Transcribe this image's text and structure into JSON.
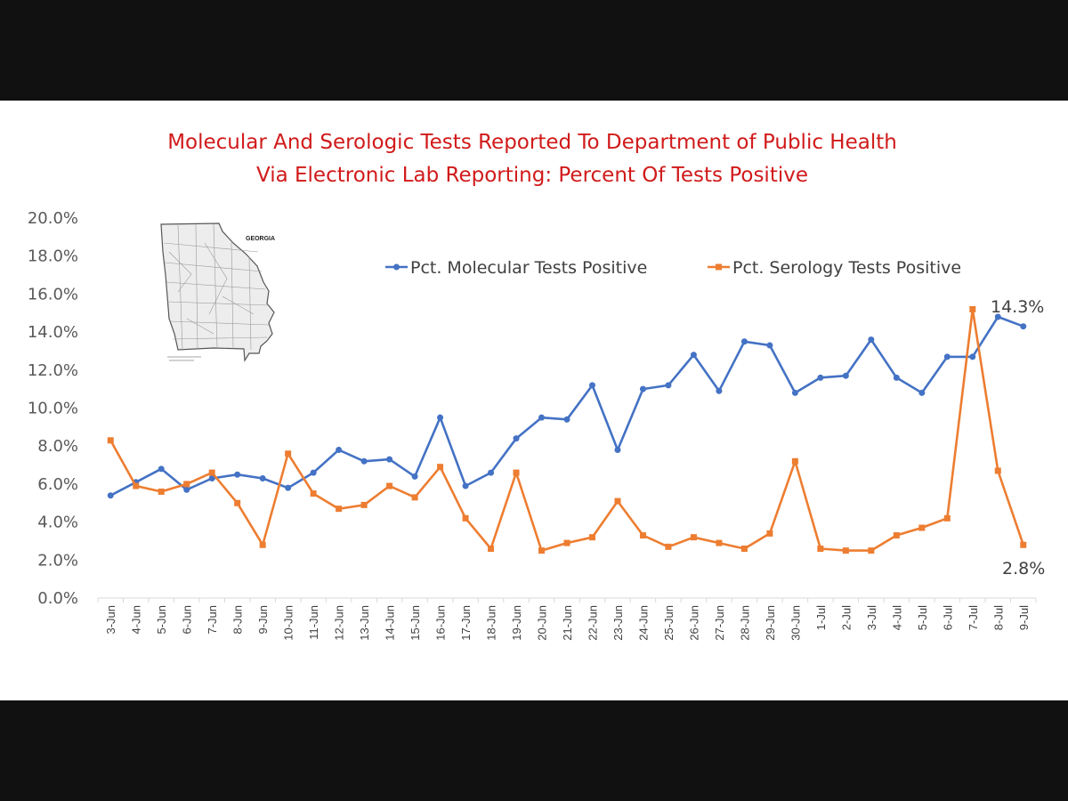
{
  "chart_data": {
    "type": "line",
    "title_lines": [
      "Molecular And Serologic Tests Reported To Department of Public Health",
      "Via Electronic Lab Reporting: Percent Of Tests Positive"
    ],
    "map_label": "GEORGIA",
    "categories": [
      "3-Jun",
      "4-Jun",
      "5-Jun",
      "6-Jun",
      "7-Jun",
      "8-Jun",
      "9-Jun",
      "10-Jun",
      "11-Jun",
      "12-Jun",
      "13-Jun",
      "14-Jun",
      "15-Jun",
      "16-Jun",
      "17-Jun",
      "18-Jun",
      "19-Jun",
      "20-Jun",
      "21-Jun",
      "22-Jun",
      "23-Jun",
      "24-Jun",
      "25-Jun",
      "26-Jun",
      "27-Jun",
      "28-Jun",
      "29-Jun",
      "30-Jun",
      "1-Jul",
      "2-Jul",
      "3-Jul",
      "4-Jul",
      "5-Jul",
      "6-Jul",
      "7-Jul",
      "8-Jul",
      "9-Jul"
    ],
    "y_ticks": [
      "0.0%",
      "2.0%",
      "4.0%",
      "6.0%",
      "8.0%",
      "10.0%",
      "12.0%",
      "14.0%",
      "16.0%",
      "18.0%",
      "20.0%"
    ],
    "ylim": [
      0,
      20
    ],
    "series": [
      {
        "name": "Pct. Molecular Tests Positive",
        "color": "#4472c4",
        "marker": "circle",
        "values": [
          5.4,
          6.1,
          6.8,
          5.7,
          6.3,
          6.5,
          6.3,
          5.8,
          6.6,
          7.8,
          7.2,
          7.3,
          6.4,
          9.5,
          5.9,
          6.6,
          8.4,
          9.5,
          9.4,
          11.2,
          7.8,
          11.0,
          11.2,
          12.8,
          10.9,
          13.5,
          13.3,
          10.8,
          11.6,
          11.7,
          13.6,
          11.6,
          10.8,
          12.7,
          12.7,
          14.8,
          14.3
        ],
        "end_label": "14.3%"
      },
      {
        "name": "Pct. Serology Tests Positive",
        "color": "#ed7d31",
        "marker": "square",
        "values": [
          8.3,
          5.9,
          5.6,
          6.0,
          6.6,
          5.0,
          2.8,
          7.6,
          5.5,
          4.7,
          4.9,
          5.9,
          5.3,
          6.9,
          4.2,
          2.6,
          6.6,
          2.5,
          2.9,
          3.2,
          5.1,
          3.3,
          2.7,
          3.2,
          2.9,
          2.6,
          3.4,
          7.2,
          2.6,
          2.5,
          2.5,
          3.3,
          3.7,
          4.2,
          15.2,
          6.7,
          2.8
        ],
        "end_label": "2.8%"
      }
    ],
    "legend_position": "top-right",
    "grid": false
  }
}
